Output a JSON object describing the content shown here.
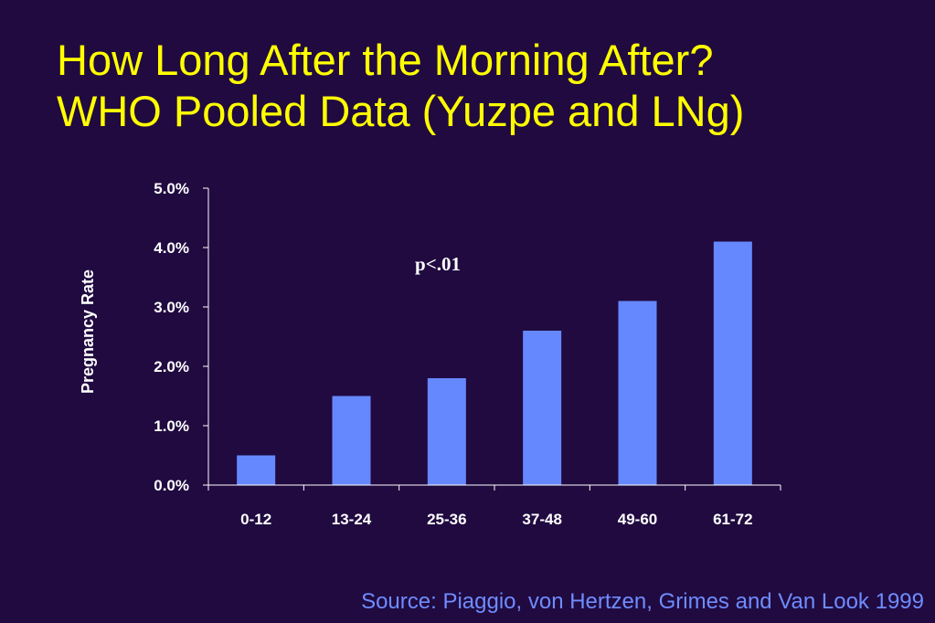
{
  "slide": {
    "title_line1": "How Long After the Morning After?",
    "title_line2": "WHO Pooled Data (Yuzpe and LNg)",
    "source": "Source: Piaggio, von Hertzen, Grimes and Van Look 1999"
  },
  "colors": {
    "background": "#200a40",
    "title": "#ffff00",
    "bar": "#6688ff",
    "text": "#ffffff",
    "source": "#6f8cff"
  },
  "chart_data": {
    "type": "bar",
    "categories": [
      "0-12",
      "13-24",
      "25-36",
      "37-48",
      "49-60",
      "61-72"
    ],
    "values": [
      0.5,
      1.5,
      1.8,
      2.6,
      3.1,
      4.1
    ],
    "value_unit": "%",
    "ylim": [
      0,
      5
    ],
    "yticks": [
      0,
      1,
      2,
      3,
      4,
      5
    ],
    "ytick_labels": [
      "0.0%",
      "1.0%",
      "2.0%",
      "3.0%",
      "4.0%",
      "5.0%"
    ],
    "ylabel": "Pregnancy Rate",
    "xlabel": "",
    "annotation": "p<.01",
    "grid": false,
    "legend": "none"
  }
}
